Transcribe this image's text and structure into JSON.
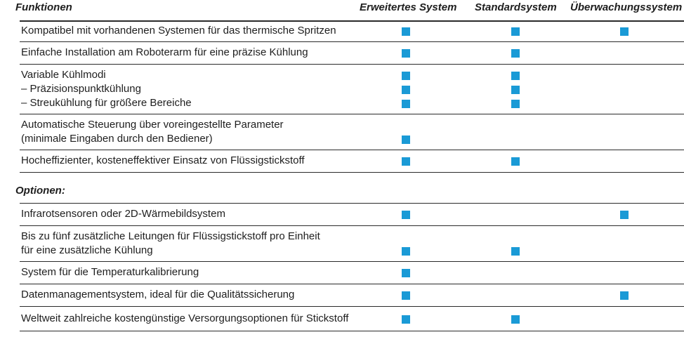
{
  "colors": {
    "marker": "#1a9ad6",
    "rule": "#2a2a2a",
    "text": "#1e1e1e"
  },
  "header": {
    "features": "Funktionen",
    "col1": "Erweitertes System",
    "col2": "Standardsystem",
    "col3": "Überwachungssystem"
  },
  "options_heading": "Optionen:",
  "rows": [
    {
      "lines": [
        "Kompatibel mit vorhandenen Systemen für das thermische Spritzen"
      ],
      "marks": [
        [
          true,
          true,
          true
        ]
      ]
    },
    {
      "lines": [
        "Einfache Installation am Roboterarm für eine präzise Kühlung"
      ],
      "marks": [
        [
          true,
          true,
          false
        ]
      ]
    },
    {
      "lines": [
        "Variable Kühlmodi",
        "– Präzisionspunktkühlung",
        "– Streukühlung für größere Bereiche"
      ],
      "marks": [
        [
          true,
          true,
          false
        ],
        [
          true,
          true,
          false
        ],
        [
          true,
          true,
          false
        ]
      ]
    },
    {
      "lines": [
        "Automatische Steuerung über voreingestellte Parameter",
        "(minimale Eingaben durch den Bediener)"
      ],
      "marks": [
        [
          true,
          false,
          false
        ]
      ]
    },
    {
      "lines": [
        "Hocheffizienter, kosteneffektiver Einsatz von Flüssigstickstoff"
      ],
      "marks": [
        [
          true,
          true,
          false
        ]
      ]
    },
    {
      "lines": [
        "Infrarotsensoren oder 2D-Wärmebildsystem"
      ],
      "marks": [
        [
          true,
          false,
          true
        ]
      ]
    },
    {
      "lines": [
        "Bis zu fünf zusätzliche Leitungen für Flüssigstickstoff pro Einheit",
        "für eine zusätzliche Kühlung"
      ],
      "marks": [
        [
          true,
          true,
          false
        ]
      ]
    },
    {
      "lines": [
        "System für die Temperaturkalibrierung"
      ],
      "marks": [
        [
          true,
          false,
          false
        ]
      ]
    },
    {
      "lines": [
        "Datenmanagementsystem, ideal für die Qualitätssicherung"
      ],
      "marks": [
        [
          true,
          false,
          true
        ]
      ]
    },
    {
      "lines": [
        "Weltweit zahlreiche kostengünstige Versorgungsoptionen für Stickstoff"
      ],
      "marks": [
        [
          true,
          true,
          false
        ]
      ]
    }
  ]
}
